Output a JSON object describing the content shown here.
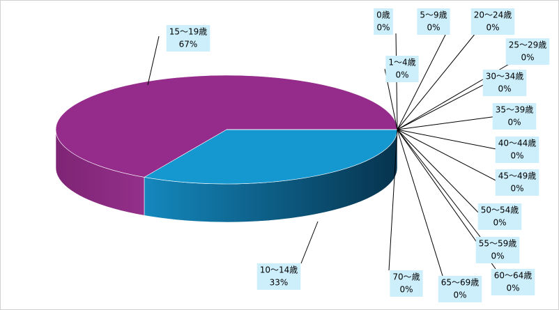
{
  "chart_data": {
    "type": "pie3d",
    "categories": [
      "0歳",
      "1～4歳",
      "5～9歳",
      "10～14歳",
      "15～19歳",
      "20～24歳",
      "25～29歳",
      "30～34歳",
      "35～39歳",
      "40～44歳",
      "45～49歳",
      "50～54歳",
      "55～59歳",
      "60～64歳",
      "65～69歳",
      "70～歳"
    ],
    "values": [
      0,
      0,
      0,
      33,
      67,
      0,
      0,
      0,
      0,
      0,
      0,
      0,
      0,
      0,
      0,
      0
    ],
    "value_labels": [
      "0%",
      "0%",
      "0%",
      "33%",
      "67%",
      "0%",
      "0%",
      "0%",
      "0%",
      "0%",
      "0%",
      "0%",
      "0%",
      "0%",
      "0%",
      "0%"
    ],
    "colors": [
      "#e07020",
      "#7aa83c",
      "#c0504d",
      "#1597d0",
      "#952b8b",
      "#4bacc6",
      "#f79646",
      "#8064a2",
      "#9bbb59",
      "#4f81bd",
      "#c0504d",
      "#2c4d75",
      "#772c2a",
      "#5f7530",
      "#4d3b62",
      "#276a7c"
    ]
  }
}
